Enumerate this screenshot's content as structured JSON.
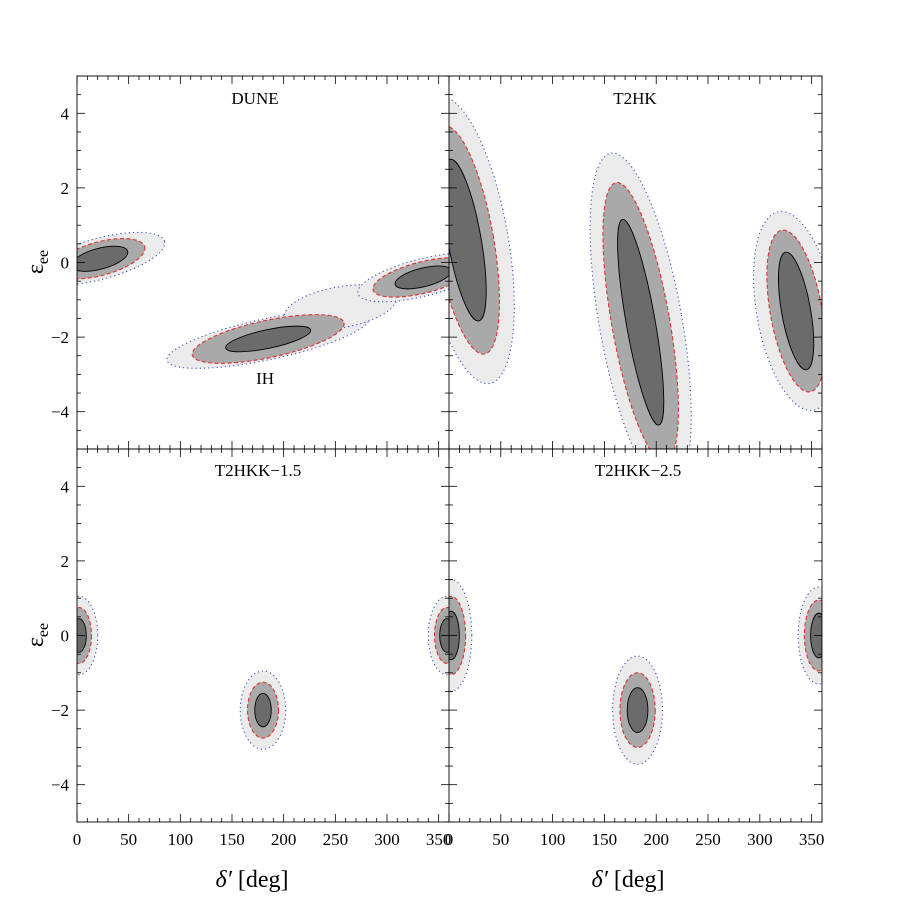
{
  "chart_data": {
    "type": "contour",
    "xlabel": "δ′ [deg]",
    "ylabel": "εee",
    "ylabel_main": "ε",
    "ylabel_sub": "ee",
    "xlim": [
      0,
      360
    ],
    "ylim": [
      -5,
      5
    ],
    "x_ticks": [
      0,
      50,
      100,
      150,
      200,
      250,
      300,
      350
    ],
    "y_ticks": [
      -4,
      -2,
      0,
      2,
      4
    ],
    "grid": false,
    "region_colors": {
      "outer": "#ebebeb",
      "middle": "#a9a9a9",
      "inner": "#6b6b6b"
    },
    "line_colors": {
      "outer": "#3b4bd1",
      "middle": "#e03030",
      "inner": "#000000"
    },
    "panels": [
      {
        "title": "DUNE",
        "annotation": {
          "text": "IH",
          "x": 182,
          "y": -3.1
        },
        "regions": [
          {
            "cx": 22,
            "cy": 0.1,
            "a": [
              65,
              45,
              28
            ],
            "b": [
              0.55,
              0.45,
              0.28
            ],
            "angle": 15
          },
          {
            "cx": 185,
            "cy": -2.05,
            "a": [
              100,
              75,
              42
            ],
            "b": [
              0.55,
              0.5,
              0.25
            ],
            "angle": 12
          },
          {
            "cx": 255,
            "cy": -1.2,
            "a": [
              55,
              0,
              0
            ],
            "b": [
              0.55,
              0,
              0
            ],
            "angle": 10
          },
          {
            "cx": 335,
            "cy": -0.4,
            "a": [
              65,
              50,
              28
            ],
            "b": [
              0.5,
              0.42,
              0.25
            ],
            "angle": 14
          }
        ]
      },
      {
        "title": "T2HK",
        "regions": [
          {
            "cx": 15,
            "cy": 0.6,
            "a": [
              3.9,
              3.1,
              2.2
            ],
            "b": [
              42,
              28,
              16
            ],
            "angle": 10
          },
          {
            "cx": 185,
            "cy": -1.6,
            "a": [
              4.6,
              3.8,
              2.8
            ],
            "b": [
              40,
              28,
              14
            ],
            "angle": 10
          },
          {
            "cx": 335,
            "cy": -1.3,
            "a": [
              2.7,
              2.2,
              1.6
            ],
            "b": [
              38,
              25,
              14
            ],
            "angle": 10
          }
        ]
      },
      {
        "title": "T2HKK−1.5",
        "regions": [
          {
            "cx": 2,
            "cy": 0,
            "a": [
              18,
              12,
              7
            ],
            "b": [
              1.05,
              0.75,
              0.45
            ],
            "angle": 0
          },
          {
            "cx": 180,
            "cy": -2.0,
            "a": [
              22,
              15,
              8
            ],
            "b": [
              1.05,
              0.75,
              0.45
            ],
            "angle": 0
          },
          {
            "cx": 358,
            "cy": 0,
            "a": [
              18,
              12,
              7
            ],
            "b": [
              1.05,
              0.75,
              0.45
            ],
            "angle": 0
          }
        ]
      },
      {
        "title": "T2HKK−2.5",
        "regions": [
          {
            "cx": 2,
            "cy": 0,
            "a": [
              20,
              14,
              8
            ],
            "b": [
              1.5,
              1.05,
              0.65
            ],
            "angle": 0
          },
          {
            "cx": 182,
            "cy": -2.0,
            "a": [
              24,
              17,
              10
            ],
            "b": [
              1.45,
              1.0,
              0.6
            ],
            "angle": 0
          },
          {
            "cx": 357,
            "cy": 0,
            "a": [
              20,
              14,
              8
            ],
            "b": [
              1.3,
              0.95,
              0.6
            ],
            "angle": 0
          }
        ]
      }
    ]
  }
}
